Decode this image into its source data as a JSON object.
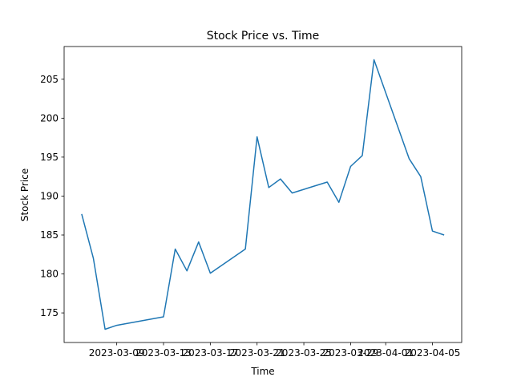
{
  "chart_data": {
    "type": "line",
    "title": "Stock Price vs. Time",
    "xlabel": "Time",
    "ylabel": "Stock Price",
    "x": [
      "2023-03-06",
      "2023-03-07",
      "2023-03-08",
      "2023-03-09",
      "2023-03-13",
      "2023-03-14",
      "2023-03-15",
      "2023-03-16",
      "2023-03-17",
      "2023-03-20",
      "2023-03-21",
      "2023-03-22",
      "2023-03-23",
      "2023-03-24",
      "2023-03-27",
      "2023-03-28",
      "2023-03-29",
      "2023-03-30",
      "2023-03-31",
      "2023-04-03",
      "2023-04-04",
      "2023-04-05",
      "2023-04-06"
    ],
    "y": [
      187.7,
      182.0,
      172.9,
      173.4,
      174.5,
      183.2,
      180.4,
      184.1,
      180.1,
      183.2,
      197.6,
      191.1,
      192.2,
      190.4,
      191.8,
      189.2,
      193.8,
      195.2,
      207.5,
      194.8,
      192.5,
      185.5,
      185.0
    ],
    "xticks": [
      "2023-03-09",
      "2023-03-13",
      "2023-03-17",
      "2023-03-21",
      "2023-03-25",
      "2023-03-29",
      "2023-04-01",
      "2023-04-05"
    ],
    "yticks": [
      175,
      180,
      185,
      190,
      195,
      200,
      205
    ],
    "xlim": [
      "2023-03-04T12:00",
      "2023-04-07T12:00"
    ],
    "ylim": [
      171.2,
      209.2
    ],
    "grid": false,
    "line_color": "#1f77b4"
  }
}
